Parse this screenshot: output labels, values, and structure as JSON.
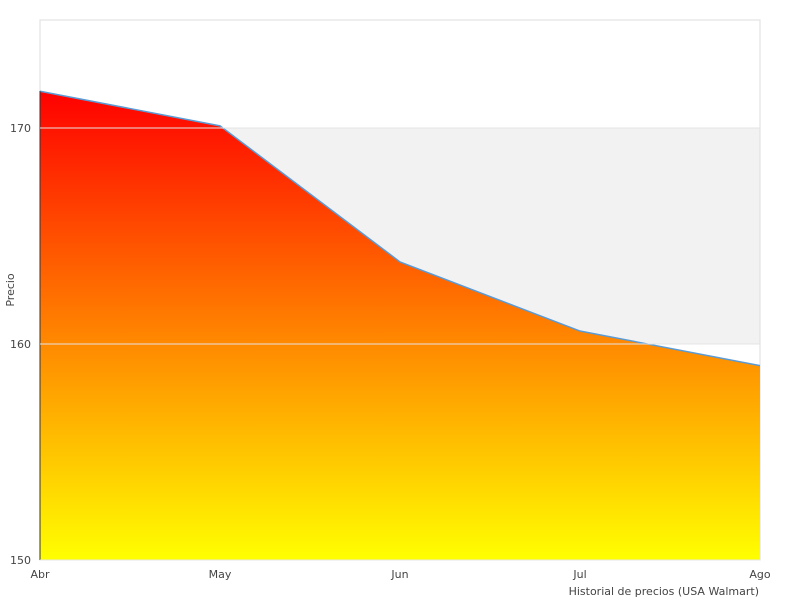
{
  "chart_data": {
    "type": "area",
    "title": "",
    "xlabel": "Historial de precios (USA Walmart)",
    "ylabel": "Precio",
    "categories": [
      "Abr",
      "May",
      "Jun",
      "Jul",
      "Ago"
    ],
    "series": [
      {
        "values": [
          171.7,
          170.1,
          163.8,
          160.6,
          159.0
        ]
      }
    ],
    "ylim": [
      150,
      175
    ],
    "yticks": [
      150,
      160,
      170
    ],
    "grid": "alternating horizontal bands",
    "legend": "none",
    "colors": {
      "fill_top": "#ff0000",
      "fill_bottom": "#ffff00",
      "line": "#5b9bd5",
      "band": "#f2f2f2",
      "border": "#dddddd"
    }
  }
}
